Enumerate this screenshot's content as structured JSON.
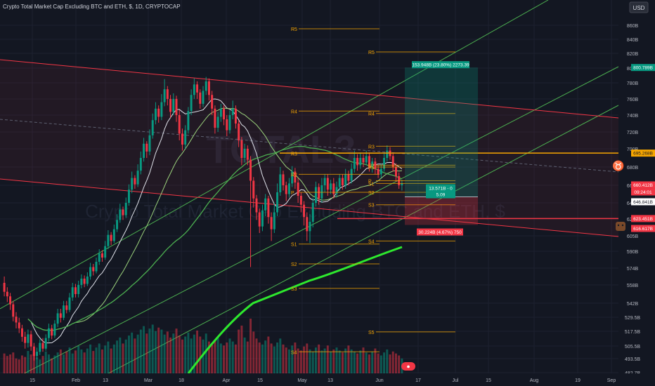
{
  "header": {
    "symbol_title": "Crypto Total Market Cap Excluding BTC and ETH, $, 1D, CRYPTOCAP"
  },
  "watermark": {
    "ticker": "TOTAL3",
    "description": "Crypto Total Market Cap Excluding BTC and ETH, $"
  },
  "currency_button": "USD",
  "chart_data": {
    "type": "candlestick",
    "title": "Crypto Total Market Cap Excluding BTC and ETH, $, 1D, CRYPTOCAP",
    "x_axis_labels": [
      "15",
      "Feb",
      "13",
      "Mar",
      "18",
      "Apr",
      "15",
      "May",
      "13",
      "Jun",
      "17",
      "Jul",
      "15",
      "Aug",
      "19",
      "Sep"
    ],
    "y_axis_labels": [
      "860B",
      "840B",
      "820B",
      "800B",
      "780B",
      "760B",
      "740B",
      "720B",
      "700B",
      "680B",
      "660B",
      "640B",
      "623B",
      "605B",
      "590B",
      "574B",
      "558B",
      "542B",
      "529.5B",
      "517.5B",
      "505.5B",
      "493.5B",
      "482.7B"
    ],
    "y_scale": "log",
    "price_tags": [
      {
        "label": "800.789B",
        "color": "#089981"
      },
      {
        "label": "695.268B",
        "color": "#f7a600"
      },
      {
        "label": "660.412B",
        "color": "#f23645"
      },
      {
        "label": "09:24:01",
        "color": "#f23645"
      },
      {
        "label": "646.841B",
        "color": "#ffffff"
      },
      {
        "label": "623.451B",
        "color": "#f23645"
      },
      {
        "label": "616.617B",
        "color": "#f23645"
      }
    ],
    "pivot_levels_left": [
      {
        "label": "R5",
        "value": 855
      },
      {
        "label": "R4",
        "value": 745
      },
      {
        "label": "R3",
        "value": 695
      },
      {
        "label": "R2",
        "value": 672
      },
      {
        "label": "P",
        "value": 652
      },
      {
        "label": "S1",
        "value": 597
      },
      {
        "label": "S2",
        "value": 578
      },
      {
        "label": "S3",
        "value": 555
      },
      {
        "label": "S4",
        "value": 500
      }
    ],
    "pivot_levels_right": [
      {
        "label": "R5",
        "value": 822
      },
      {
        "label": "R4",
        "value": 742
      },
      {
        "label": "R3",
        "value": 703
      },
      {
        "label": "R2",
        "value": 682
      },
      {
        "label": "R1",
        "value": 680
      },
      {
        "label": "P",
        "value": 665
      },
      {
        "label": "S1",
        "value": 662
      },
      {
        "label": "S2",
        "value": 652
      },
      {
        "label": "S3",
        "value": 638
      },
      {
        "label": "S4",
        "value": 600
      },
      {
        "label": "S5",
        "value": 517
      }
    ],
    "horizontal_lines": [
      {
        "value": 695.268,
        "color": "#f7a600"
      },
      {
        "value": 623.451,
        "color": "#f23645"
      }
    ],
    "position_tool": {
      "entry": 646.841,
      "target": 800.789,
      "stop": 616.617,
      "target_label": "153.948B (23.80%) 2273.39",
      "stop_label": "30.224B (4.67%) 750",
      "ratio_label": "13.571B - 0",
      "ratio_value": "5.09"
    },
    "candles": [
      [
        560,
        552,
        566,
        548
      ],
      [
        552,
        548,
        556,
        543
      ],
      [
        548,
        541,
        551,
        536
      ],
      [
        541,
        530,
        544,
        526
      ],
      [
        530,
        525,
        534,
        520
      ],
      [
        525,
        520,
        529,
        516
      ],
      [
        520,
        513,
        523,
        509
      ],
      [
        513,
        508,
        517,
        503
      ],
      [
        508,
        515,
        519,
        504
      ],
      [
        515,
        505,
        518,
        501
      ],
      [
        505,
        496,
        508,
        492
      ],
      [
        496,
        500,
        504,
        493
      ],
      [
        500,
        508,
        511,
        497
      ],
      [
        508,
        503,
        512,
        500
      ],
      [
        503,
        512,
        515,
        501
      ],
      [
        512,
        520,
        524,
        509
      ],
      [
        520,
        514,
        523,
        511
      ],
      [
        514,
        524,
        527,
        512
      ],
      [
        524,
        533,
        537,
        521
      ],
      [
        533,
        529,
        537,
        525
      ],
      [
        529,
        540,
        544,
        527
      ],
      [
        540,
        536,
        544,
        533
      ],
      [
        536,
        547,
        551,
        534
      ],
      [
        547,
        556,
        560,
        544
      ],
      [
        556,
        550,
        559,
        547
      ],
      [
        550,
        558,
        562,
        547
      ],
      [
        558,
        564,
        568,
        555
      ],
      [
        564,
        559,
        567,
        556
      ],
      [
        559,
        566,
        570,
        557
      ],
      [
        566,
        575,
        579,
        563
      ],
      [
        575,
        571,
        578,
        567
      ],
      [
        571,
        580,
        584,
        569
      ],
      [
        580,
        588,
        592,
        577
      ],
      [
        588,
        584,
        591,
        580
      ],
      [
        584,
        595,
        600,
        582
      ],
      [
        595,
        606,
        611,
        592
      ],
      [
        606,
        600,
        609,
        596
      ],
      [
        600,
        612,
        617,
        598
      ],
      [
        612,
        622,
        628,
        609
      ],
      [
        622,
        633,
        639,
        619
      ],
      [
        633,
        627,
        636,
        622
      ],
      [
        627,
        640,
        646,
        624
      ],
      [
        640,
        655,
        661,
        637
      ],
      [
        655,
        668,
        675,
        651
      ],
      [
        668,
        661,
        671,
        656
      ],
      [
        661,
        676,
        683,
        658
      ],
      [
        676,
        690,
        697,
        672
      ],
      [
        690,
        706,
        713,
        686
      ],
      [
        706,
        697,
        709,
        690
      ],
      [
        697,
        716,
        723,
        693
      ],
      [
        716,
        734,
        742,
        712
      ],
      [
        734,
        748,
        756,
        729
      ],
      [
        748,
        738,
        752,
        731
      ],
      [
        738,
        756,
        766,
        734
      ],
      [
        756,
        772,
        785,
        751
      ],
      [
        772,
        760,
        776,
        752
      ],
      [
        760,
        744,
        765,
        737
      ],
      [
        744,
        760,
        767,
        740
      ],
      [
        760,
        740,
        764,
        732
      ],
      [
        740,
        718,
        746,
        710
      ],
      [
        718,
        705,
        724,
        698
      ],
      [
        705,
        722,
        728,
        700
      ],
      [
        722,
        745,
        750,
        718
      ],
      [
        745,
        765,
        772,
        740
      ],
      [
        765,
        778,
        786,
        760
      ],
      [
        778,
        768,
        782,
        760
      ],
      [
        768,
        754,
        772,
        748
      ],
      [
        754,
        770,
        776,
        750
      ],
      [
        770,
        782,
        788,
        765
      ],
      [
        782,
        765,
        786,
        758
      ],
      [
        765,
        748,
        770,
        740
      ],
      [
        748,
        725,
        752,
        718
      ],
      [
        725,
        738,
        744,
        720
      ],
      [
        738,
        748,
        754,
        732
      ],
      [
        748,
        735,
        752,
        728
      ],
      [
        735,
        722,
        740,
        715
      ],
      [
        722,
        740,
        746,
        718
      ],
      [
        740,
        748,
        758,
        735
      ],
      [
        748,
        730,
        752,
        724
      ],
      [
        730,
        710,
        734,
        702
      ],
      [
        710,
        690,
        714,
        682
      ],
      [
        690,
        700,
        706,
        685
      ],
      [
        700,
        688,
        704,
        682
      ],
      [
        688,
        665,
        692,
        575
      ],
      [
        665,
        645,
        669,
        635
      ],
      [
        645,
        630,
        649,
        622
      ],
      [
        630,
        615,
        634,
        608
      ],
      [
        615,
        632,
        638,
        610
      ],
      [
        632,
        645,
        650,
        626
      ],
      [
        645,
        625,
        648,
        618
      ],
      [
        625,
        612,
        630,
        600
      ],
      [
        612,
        630,
        640,
        608
      ],
      [
        630,
        652,
        662,
        626
      ],
      [
        652,
        672,
        680,
        648
      ],
      [
        672,
        660,
        676,
        654
      ],
      [
        660,
        650,
        664,
        642
      ],
      [
        650,
        662,
        668,
        646
      ],
      [
        662,
        675,
        681,
        658
      ],
      [
        675,
        663,
        679,
        656
      ],
      [
        663,
        648,
        668,
        640
      ],
      [
        648,
        638,
        652,
        630
      ],
      [
        638,
        625,
        642,
        616
      ],
      [
        625,
        610,
        630,
        600
      ],
      [
        610,
        620,
        628,
        598
      ],
      [
        620,
        640,
        646,
        614
      ],
      [
        640,
        658,
        664,
        636
      ],
      [
        658,
        645,
        662,
        638
      ],
      [
        645,
        660,
        668,
        640
      ],
      [
        660,
        668,
        672,
        652
      ],
      [
        668,
        655,
        672,
        648
      ],
      [
        655,
        662,
        666,
        650
      ],
      [
        662,
        650,
        668,
        645
      ],
      [
        650,
        658,
        664,
        646
      ],
      [
        658,
        668,
        672,
        654
      ],
      [
        668,
        660,
        672,
        655
      ],
      [
        660,
        672,
        678,
        656
      ],
      [
        672,
        665,
        676,
        660
      ],
      [
        665,
        678,
        684,
        662
      ],
      [
        678,
        690,
        698,
        674
      ],
      [
        690,
        682,
        694,
        676
      ],
      [
        682,
        690,
        696,
        678
      ],
      [
        690,
        685,
        694,
        680
      ],
      [
        685,
        692,
        698,
        682
      ],
      [
        692,
        680,
        696,
        675
      ],
      [
        680,
        686,
        690,
        674
      ],
      [
        686,
        678,
        690,
        672
      ],
      [
        678,
        672,
        682,
        668
      ],
      [
        672,
        678,
        684,
        668
      ],
      [
        678,
        690,
        695,
        675
      ],
      [
        690,
        698,
        704,
        686
      ],
      [
        698,
        692,
        702,
        688
      ],
      [
        692,
        680,
        696,
        675
      ],
      [
        680,
        670,
        684,
        664
      ],
      [
        670,
        660,
        674,
        656
      ],
      [
        660,
        662,
        666,
        654
      ]
    ],
    "volumes": [
      40,
      35,
      38,
      42,
      30,
      28,
      36,
      33,
      45,
      38,
      40,
      32,
      28,
      35,
      44,
      38,
      30,
      36,
      42,
      48,
      38,
      44,
      52,
      40,
      46,
      55,
      48,
      42,
      50,
      58,
      45,
      52,
      60,
      48,
      56,
      64,
      50,
      58,
      66,
      72,
      60,
      68,
      76,
      82,
      70,
      78,
      88,
      95,
      80,
      90,
      98,
      85,
      92,
      88,
      78,
      84,
      72,
      80,
      90,
      76,
      68,
      74,
      82,
      70,
      78,
      86,
      74,
      68,
      80,
      64,
      58,
      66,
      72,
      60,
      56,
      62,
      70,
      64,
      58,
      88,
      96,
      72,
      64,
      110,
      84,
      70,
      62,
      58,
      66,
      74,
      60,
      54,
      62,
      70,
      58,
      52,
      48,
      56,
      62,
      50,
      46,
      54,
      60,
      48,
      44,
      52,
      58,
      46,
      50,
      56,
      44,
      48,
      52,
      46,
      42,
      50,
      56,
      48,
      44,
      40,
      46,
      52,
      42,
      38,
      44,
      50,
      40,
      36,
      42,
      48,
      38,
      44,
      40,
      36,
      30
    ],
    "support_lines": [
      {
        "name": "",
        "type": "line"
      }
    ]
  },
  "time_axis_icon": "clock-icon",
  "bull_icon": "bull-icon",
  "bear_icon": "bear-icon"
}
